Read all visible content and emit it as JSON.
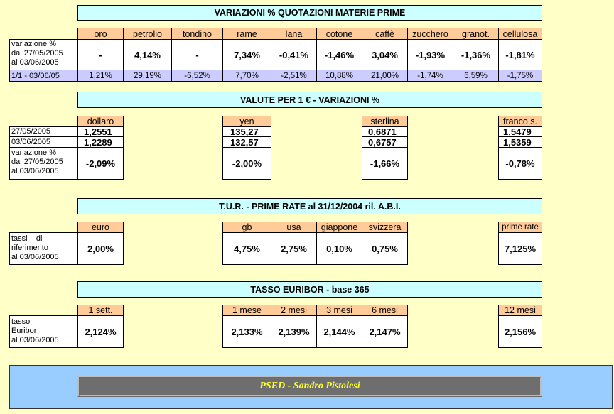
{
  "materie": {
    "title": "VARIAZIONI % QUOTAZIONI MATERIE PRIME",
    "headers": [
      "oro",
      "petrolio",
      "tondino",
      "rame",
      "lana",
      "cotone",
      "caffè",
      "zucchero",
      "granot.",
      "cellulosa"
    ],
    "row_label_lines": [
      "variazione %",
      "dal 27/05/2005",
      "al 03/06/2005"
    ],
    "values": [
      "-",
      "4,14%",
      "-",
      "7,34%",
      "-0,41%",
      "-1,46%",
      "3,04%",
      "-1,93%",
      "-1,36%",
      "-1,81%"
    ],
    "ytd_label": "1/1 - 03/06/05",
    "ytd_values": [
      "1,21%",
      "29,19%",
      "-6,52%",
      "7,70%",
      "-2,51%",
      "10,88%",
      "21,00%",
      "-1,74%",
      "6,59%",
      "-1,75%"
    ]
  },
  "valute": {
    "title": "VALUTE PER 1 € - VARIAZIONI %",
    "row1_label": "27/05/2005",
    "row2_label": "03/06/2005",
    "var_label_lines": [
      "variazione %",
      "dal 27/05/2005",
      "al 03/06/2005"
    ],
    "currencies": [
      {
        "name": "dollaro",
        "r1": "1,2551",
        "r2": "1,2289",
        "var": "-2,09%"
      },
      {
        "name": "yen",
        "r1": "135,27",
        "r2": "132,57",
        "var": "-2,00%"
      },
      {
        "name": "sterlina",
        "r1": "0,6871",
        "r2": "0,6757",
        "var": "-1,66%"
      },
      {
        "name": "franco s.",
        "r1": "1,5479",
        "r2": "1,5359",
        "var": "-0,78%"
      }
    ]
  },
  "tur": {
    "title": "T.U.R. - PRIME RATE al 31/12/2004 ril. A.B.I.",
    "label_lines": [
      "tassi    di",
      "riferimento",
      "al 03/06/2005"
    ],
    "items": [
      {
        "name": "euro",
        "value": "2,00%"
      },
      {
        "name": "gb",
        "value": "4,75%"
      },
      {
        "name": "usa",
        "value": "2,75%"
      },
      {
        "name": "giappone",
        "value": "0,10%"
      },
      {
        "name": "svizzera",
        "value": "0,75%"
      },
      {
        "name": "prime rate",
        "value": "7,125%"
      }
    ]
  },
  "euribor": {
    "title": "TASSO EURIBOR - base 365",
    "label_lines": [
      "tasso",
      "Euribor",
      "al 03/06/2005"
    ],
    "items": [
      {
        "name": "1 sett.",
        "value": "2,124%"
      },
      {
        "name": "1 mese",
        "value": "2,133%"
      },
      {
        "name": "2 mesi",
        "value": "2,139%"
      },
      {
        "name": "3 mesi",
        "value": "2,144%"
      },
      {
        "name": "6 mesi",
        "value": "2,147%"
      },
      {
        "name": "12 mesi",
        "value": "2,156%"
      }
    ]
  },
  "footer": {
    "text": "PSED - Sandro Pistolesi"
  }
}
